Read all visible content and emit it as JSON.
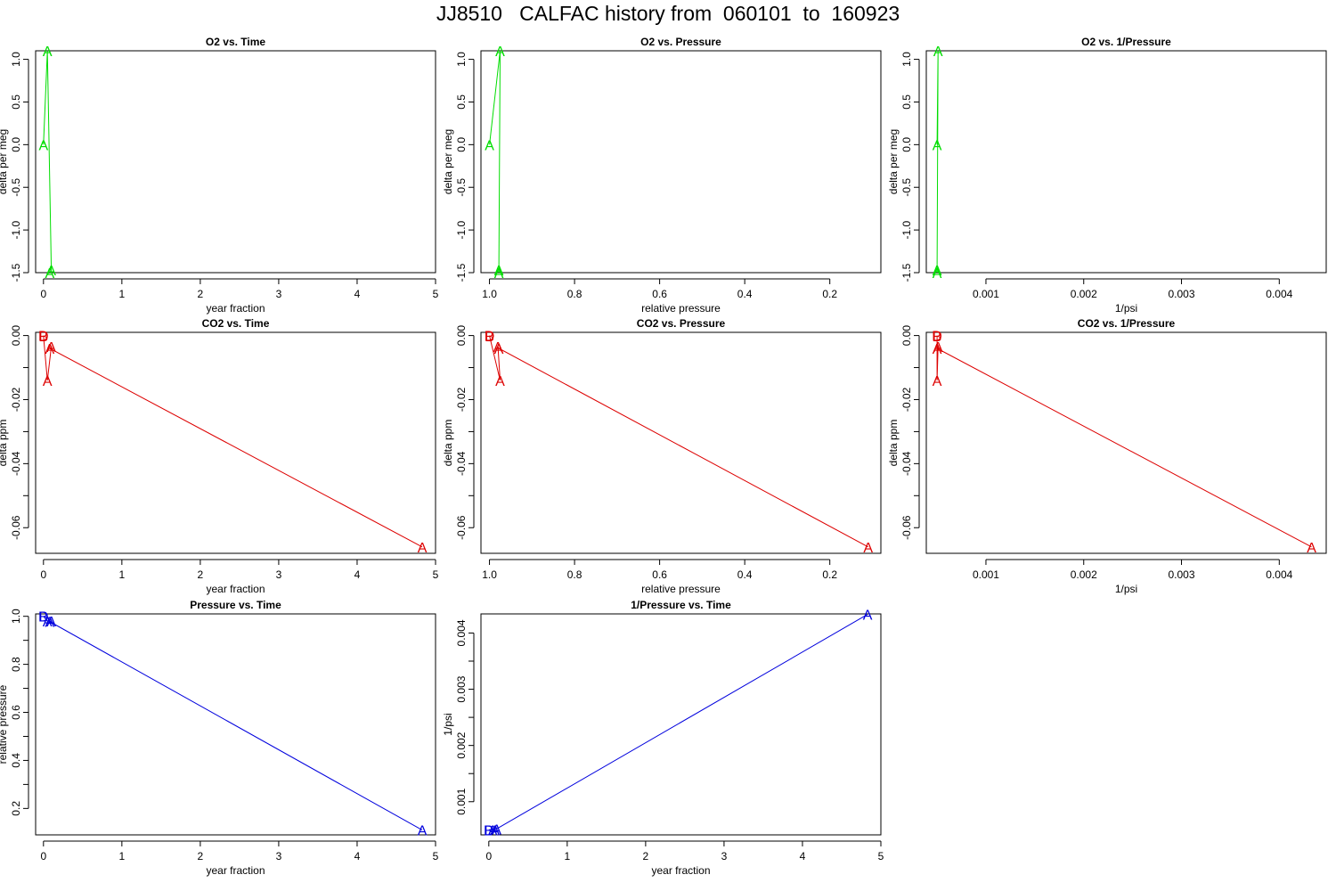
{
  "page_title": "JJ8510   CALFAC history from  060101  to  160923",
  "chart_data": [
    {
      "type": "line",
      "title": "O2 vs. Time",
      "xlabel": "year fraction",
      "ylabel": "delta per meg",
      "xlim": [
        -0.1,
        5
      ],
      "ylim": [
        -1.5,
        1.1
      ],
      "xticks": [
        0,
        1,
        2,
        3,
        4,
        5
      ],
      "xtick_labels": [
        "0",
        "1",
        "2",
        "3",
        "4",
        "5"
      ],
      "yticks": [
        -1.5,
        -1.0,
        -0.5,
        0.0,
        0.5,
        1.0
      ],
      "ytick_labels": [
        "-1.5",
        "-1.0",
        "-0.5",
        "0.0",
        "0.5",
        "1.0"
      ],
      "series": [
        {
          "color": "#00dd00",
          "x": [
            0.0,
            0.05,
            0.1,
            0.08
          ],
          "y": [
            0.0,
            1.1,
            -1.47,
            -1.5
          ],
          "labels": [
            "A",
            "A",
            "A",
            "A"
          ]
        }
      ]
    },
    {
      "type": "line",
      "title": "O2 vs. Pressure",
      "xlabel": "relative pressure",
      "ylabel": "delta per meg",
      "xlim": [
        1.02,
        0.08
      ],
      "ylim": [
        -1.5,
        1.1
      ],
      "xticks": [
        1.0,
        0.8,
        0.6,
        0.4,
        0.2
      ],
      "xtick_labels": [
        "1.0",
        "0.8",
        "0.6",
        "0.4",
        "0.2"
      ],
      "yticks": [
        -1.5,
        -1.0,
        -0.5,
        0.0,
        0.5,
        1.0
      ],
      "ytick_labels": [
        "-1.5",
        "-1.0",
        "-0.5",
        "0.0",
        "0.5",
        "1.0"
      ],
      "series": [
        {
          "color": "#00dd00",
          "x": [
            1.0,
            0.975,
            0.978,
            0.978
          ],
          "y": [
            0.0,
            1.1,
            -1.47,
            -1.5
          ],
          "labels": [
            "A",
            "A",
            "A",
            "A"
          ]
        }
      ]
    },
    {
      "type": "line",
      "title": "O2 vs. 1/Pressure",
      "xlabel": "1/psi",
      "ylabel": "delta per meg",
      "xlim": [
        0.00039,
        0.00448
      ],
      "ylim": [
        -1.5,
        1.1
      ],
      "xticks": [
        0.001,
        0.002,
        0.003,
        0.004
      ],
      "xtick_labels": [
        "0.001",
        "0.002",
        "0.003",
        "0.004"
      ],
      "yticks": [
        -1.5,
        -1.0,
        -0.5,
        0.0,
        0.5,
        1.0
      ],
      "ytick_labels": [
        "-1.5",
        "-1.0",
        "-0.5",
        "0.0",
        "0.5",
        "1.0"
      ],
      "series": [
        {
          "color": "#00dd00",
          "x": [
            0.0005,
            0.00051,
            0.0005,
            0.0005
          ],
          "y": [
            0.0,
            1.1,
            -1.47,
            -1.5
          ],
          "labels": [
            "A",
            "A",
            "A",
            "A"
          ]
        }
      ]
    },
    {
      "type": "line",
      "title": "CO2 vs. Time",
      "xlabel": "year fraction",
      "ylabel": "delta ppm",
      "xlim": [
        -0.1,
        5
      ],
      "ylim": [
        -0.068,
        0.001
      ],
      "xticks": [
        0,
        1,
        2,
        3,
        4,
        5
      ],
      "xtick_labels": [
        "0",
        "1",
        "2",
        "3",
        "4",
        "5"
      ],
      "yticks": [
        -0.06,
        -0.04,
        -0.02,
        0.0
      ],
      "ytick_labels": [
        "-0.06",
        "-0.04",
        "-0.02",
        "0.00"
      ],
      "yticks_minor": [
        -0.05,
        -0.03,
        -0.01
      ],
      "series": [
        {
          "color": "#dd0000",
          "x": [
            0.0,
            0.0,
            0.05,
            0.1,
            0.08,
            4.83
          ],
          "y": [
            0.0,
            -0.0001,
            -0.014,
            -0.0035,
            -0.004,
            -0.066
          ],
          "labels": [
            "D",
            "B",
            "A",
            "A",
            "A",
            "A"
          ]
        }
      ]
    },
    {
      "type": "line",
      "title": "CO2 vs. Pressure",
      "xlabel": "relative pressure",
      "ylabel": "delta ppm",
      "xlim": [
        1.02,
        0.08
      ],
      "ylim": [
        -0.068,
        0.001
      ],
      "xticks": [
        1.0,
        0.8,
        0.6,
        0.4,
        0.2
      ],
      "xtick_labels": [
        "1.0",
        "0.8",
        "0.6",
        "0.4",
        "0.2"
      ],
      "yticks": [
        -0.06,
        -0.04,
        -0.02,
        0.0
      ],
      "ytick_labels": [
        "-0.06",
        "-0.04",
        "-0.02",
        "0.00"
      ],
      "yticks_minor": [
        -0.05,
        -0.03,
        -0.01
      ],
      "series": [
        {
          "color": "#dd0000",
          "x": [
            1.0,
            1.0,
            0.975,
            0.98,
            0.978,
            0.11
          ],
          "y": [
            0.0,
            -0.0001,
            -0.014,
            -0.0035,
            -0.004,
            -0.066
          ],
          "labels": [
            "D",
            "B",
            "A",
            "A",
            "A",
            "A"
          ]
        }
      ]
    },
    {
      "type": "line",
      "title": "CO2 vs. 1/Pressure",
      "xlabel": "1/psi",
      "ylabel": "delta ppm",
      "xlim": [
        0.00039,
        0.00448
      ],
      "ylim": [
        -0.068,
        0.001
      ],
      "xticks": [
        0.001,
        0.002,
        0.003,
        0.004
      ],
      "xtick_labels": [
        "0.001",
        "0.002",
        "0.003",
        "0.004"
      ],
      "yticks": [
        -0.06,
        -0.04,
        -0.02,
        0.0
      ],
      "ytick_labels": [
        "-0.06",
        "-0.04",
        "-0.02",
        "0.00"
      ],
      "yticks_minor": [
        -0.05,
        -0.03,
        -0.01
      ],
      "series": [
        {
          "color": "#dd0000",
          "x": [
            0.0005,
            0.0005,
            0.0005,
            0.00051,
            0.0005,
            0.00433
          ],
          "y": [
            0.0,
            -0.0001,
            -0.014,
            -0.0035,
            -0.004,
            -0.066
          ],
          "labels": [
            "D",
            "B",
            "A",
            "A",
            "A",
            "A"
          ]
        }
      ]
    },
    {
      "type": "line",
      "title": "Pressure vs. Time",
      "xlabel": "year fraction",
      "ylabel": "relative pressure",
      "xlim": [
        -0.1,
        5
      ],
      "ylim": [
        0.09,
        1.01
      ],
      "xticks": [
        0,
        1,
        2,
        3,
        4,
        5
      ],
      "xtick_labels": [
        "0",
        "1",
        "2",
        "3",
        "4",
        "5"
      ],
      "yticks": [
        0.2,
        0.4,
        0.6,
        0.8,
        1.0
      ],
      "ytick_labels": [
        "0.2",
        "0.4",
        "0.6",
        "0.8",
        "1.0"
      ],
      "yticks_minor": [
        0.3,
        0.5,
        0.7,
        0.9
      ],
      "series": [
        {
          "color": "#0000dd",
          "x": [
            0.0,
            0.0,
            0.05,
            0.1,
            0.08,
            4.83
          ],
          "y": [
            1.0,
            1.0,
            0.98,
            0.98,
            0.978,
            0.11
          ],
          "labels": [
            "D",
            "B",
            "A",
            "A",
            "A",
            "A"
          ]
        }
      ]
    },
    {
      "type": "line",
      "title": "1/Pressure vs. Time",
      "xlabel": "year fraction",
      "ylabel": "1/psi",
      "xlim": [
        -0.1,
        5
      ],
      "ylim": [
        0.00041,
        0.00434
      ],
      "xticks": [
        0,
        1,
        2,
        3,
        4,
        5
      ],
      "xtick_labels": [
        "0",
        "1",
        "2",
        "3",
        "4",
        "5"
      ],
      "yticks": [
        0.001,
        0.002,
        0.003,
        0.004
      ],
      "ytick_labels": [
        "0.001",
        "0.002",
        "0.003",
        "0.004"
      ],
      "yticks_minor": [
        0.0015,
        0.0025,
        0.0035
      ],
      "series": [
        {
          "color": "#0000dd",
          "x": [
            0.0,
            0.0,
            0.05,
            0.1,
            0.08,
            4.83
          ],
          "y": [
            0.0005,
            0.0005,
            0.0005,
            0.00051,
            0.0005,
            0.00433
          ],
          "labels": [
            "D",
            "B",
            "A",
            "A",
            "A",
            "A"
          ]
        }
      ]
    }
  ]
}
